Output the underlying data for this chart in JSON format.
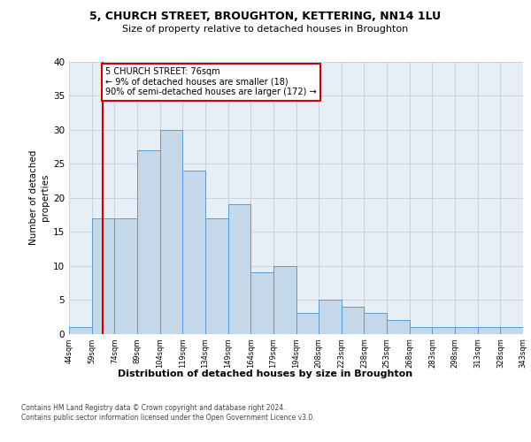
{
  "title1": "5, CHURCH STREET, BROUGHTON, KETTERING, NN14 1LU",
  "title2": "Size of property relative to detached houses in Broughton",
  "xlabel": "Distribution of detached houses by size in Broughton",
  "ylabel": "Number of detached\nproperties",
  "categories": [
    "44sqm",
    "59sqm",
    "74sqm",
    "89sqm",
    "104sqm",
    "119sqm",
    "134sqm",
    "149sqm",
    "164sqm",
    "179sqm",
    "194sqm",
    "208sqm",
    "223sqm",
    "238sqm",
    "253sqm",
    "268sqm",
    "283sqm",
    "298sqm",
    "313sqm",
    "328sqm",
    "343sqm"
  ],
  "values": [
    1,
    17,
    17,
    27,
    30,
    24,
    17,
    19,
    9,
    10,
    3,
    5,
    4,
    3,
    2,
    1,
    1,
    1,
    1,
    1
  ],
  "bar_color": "#c5d8ea",
  "bar_edge_color": "#5b9bd5",
  "vline_x": 1.5,
  "vline_color": "#cc0000",
  "annotation_text": "5 CHURCH STREET: 76sqm\n← 9% of detached houses are smaller (18)\n90% of semi-detached houses are larger (172) →",
  "annotation_box_facecolor": "#ffffff",
  "annotation_border_color": "#cc0000",
  "ylim": [
    0,
    40
  ],
  "yticks": [
    0,
    5,
    10,
    15,
    20,
    25,
    30,
    35,
    40
  ],
  "grid_color": "#c8d4e3",
  "footer": "Contains HM Land Registry data © Crown copyright and database right 2024.\nContains public sector information licensed under the Open Government Licence v3.0.",
  "plot_bg_color": "#e8eef5",
  "fig_bg_color": "#ffffff"
}
